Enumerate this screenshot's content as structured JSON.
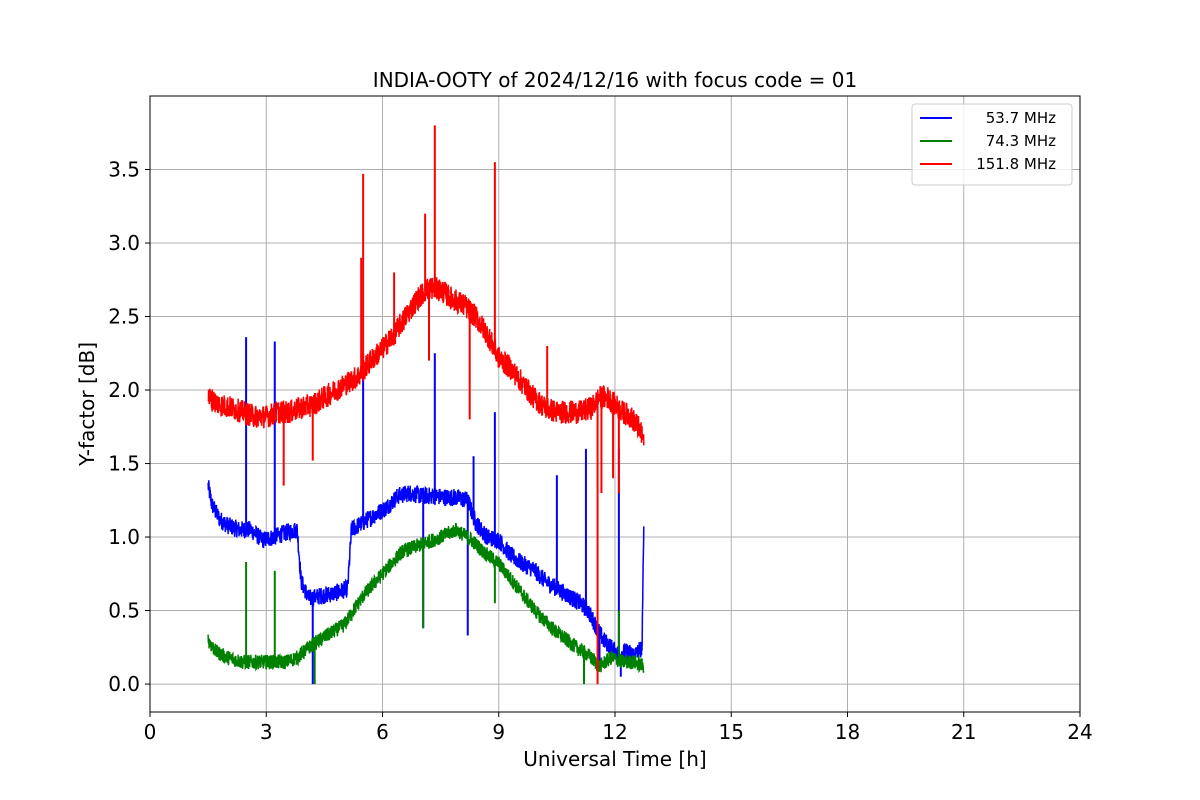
{
  "chart_data": {
    "type": "line",
    "title": "INDIA-OOTY of 2024/12/16 with focus code = 01",
    "xlabel": "Universal Time [h]",
    "ylabel": "Y-factor [dB]",
    "xlim": [
      0,
      24
    ],
    "ylim": [
      -0.19,
      4.0
    ],
    "xticks": [
      0,
      3,
      6,
      9,
      12,
      15,
      18,
      21,
      24
    ],
    "yticks": [
      0.0,
      0.5,
      1.0,
      1.5,
      2.0,
      2.5,
      3.0,
      3.5
    ],
    "ytick_labels": [
      "0.0",
      "0.5",
      "1.0",
      "1.5",
      "2.0",
      "2.5",
      "3.0",
      "3.5"
    ],
    "grid": true,
    "legend_position": "upper right",
    "series": [
      {
        "name": "53.7 MHz",
        "color": "#0000ff",
        "noise": 0.06,
        "x": [
          1.5,
          1.6,
          1.8,
          2.0,
          2.3,
          2.6,
          2.9,
          3.2,
          3.5,
          3.8,
          3.9,
          4.1,
          4.4,
          4.8,
          5.1,
          5.2,
          5.5,
          5.8,
          6.1,
          6.4,
          6.7,
          7.0,
          7.3,
          7.6,
          7.9,
          8.2,
          8.4,
          8.7,
          9.0,
          9.3,
          9.6,
          9.9,
          10.2,
          10.5,
          10.8,
          11.1,
          11.3,
          11.5,
          11.7,
          11.9,
          12.1,
          12.3,
          12.5,
          12.6,
          12.7,
          12.75
        ],
        "y": [
          1.35,
          1.22,
          1.12,
          1.08,
          1.05,
          1.05,
          0.98,
          1.0,
          1.03,
          1.05,
          0.7,
          0.58,
          0.6,
          0.62,
          0.65,
          1.05,
          1.1,
          1.15,
          1.2,
          1.28,
          1.3,
          1.28,
          1.28,
          1.27,
          1.27,
          1.25,
          1.1,
          1.0,
          0.98,
          0.88,
          0.82,
          0.78,
          0.7,
          0.65,
          0.6,
          0.55,
          0.5,
          0.4,
          0.3,
          0.25,
          0.2,
          0.22,
          0.2,
          0.22,
          0.25,
          1.25
        ],
        "spikes": [
          [
            2.48,
            2.36
          ],
          [
            3.22,
            2.33
          ],
          [
            4.2,
            0.0
          ],
          [
            5.5,
            2.25
          ],
          [
            7.05,
            0.38
          ],
          [
            7.35,
            2.25
          ],
          [
            8.2,
            0.33
          ],
          [
            8.35,
            1.55
          ],
          [
            8.9,
            1.85
          ],
          [
            10.5,
            1.42
          ],
          [
            11.25,
            1.6
          ],
          [
            11.6,
            0.1
          ],
          [
            12.1,
            1.6
          ],
          [
            12.15,
            0.05
          ]
        ]
      },
      {
        "name": "74.3 MHz",
        "color": "#008000",
        "noise": 0.05,
        "x": [
          1.5,
          1.7,
          2.0,
          2.4,
          2.8,
          3.2,
          3.5,
          3.8,
          4.1,
          4.5,
          5.0,
          5.5,
          6.0,
          6.5,
          7.0,
          7.5,
          7.9,
          8.3,
          8.6,
          9.0,
          9.5,
          10.0,
          10.5,
          11.0,
          11.3,
          11.6,
          11.9,
          12.2,
          12.5,
          12.75
        ],
        "y": [
          0.3,
          0.22,
          0.18,
          0.15,
          0.15,
          0.15,
          0.15,
          0.18,
          0.25,
          0.32,
          0.4,
          0.6,
          0.75,
          0.9,
          0.95,
          1.0,
          1.05,
          0.98,
          0.9,
          0.82,
          0.65,
          0.48,
          0.35,
          0.25,
          0.2,
          0.12,
          0.18,
          0.15,
          0.15,
          0.12
        ],
        "spikes": [
          [
            2.48,
            0.83
          ],
          [
            3.22,
            0.77
          ],
          [
            4.25,
            0.0
          ],
          [
            7.05,
            0.38
          ],
          [
            8.9,
            0.55
          ],
          [
            11.2,
            0.0
          ],
          [
            12.1,
            0.5
          ]
        ]
      },
      {
        "name": "151.8 MHz",
        "color": "#ff0000",
        "noise": 0.08,
        "x": [
          1.5,
          1.8,
          2.1,
          2.4,
          2.7,
          3.0,
          3.3,
          3.6,
          3.9,
          4.2,
          4.5,
          4.8,
          5.1,
          5.4,
          5.7,
          6.0,
          6.3,
          6.6,
          6.9,
          7.2,
          7.5,
          7.8,
          8.1,
          8.4,
          8.7,
          9.0,
          9.3,
          9.6,
          9.9,
          10.2,
          10.5,
          10.8,
          11.1,
          11.4,
          11.6,
          11.8,
          12.0,
          12.2,
          12.4,
          12.6,
          12.75
        ],
        "y": [
          1.95,
          1.9,
          1.88,
          1.85,
          1.82,
          1.82,
          1.85,
          1.85,
          1.88,
          1.9,
          1.95,
          2.0,
          2.05,
          2.1,
          2.2,
          2.28,
          2.38,
          2.5,
          2.62,
          2.7,
          2.68,
          2.62,
          2.58,
          2.5,
          2.38,
          2.22,
          2.15,
          2.05,
          1.95,
          1.88,
          1.85,
          1.85,
          1.85,
          1.88,
          1.95,
          1.95,
          1.9,
          1.85,
          1.82,
          1.75,
          1.65
        ],
        "spikes": [
          [
            3.45,
            1.35
          ],
          [
            4.2,
            1.52
          ],
          [
            5.5,
            3.47
          ],
          [
            5.45,
            2.9
          ],
          [
            6.3,
            2.8
          ],
          [
            7.35,
            3.8
          ],
          [
            7.1,
            3.2
          ],
          [
            7.2,
            2.2
          ],
          [
            8.9,
            3.55
          ],
          [
            8.25,
            1.8
          ],
          [
            10.25,
            2.3
          ],
          [
            11.55,
            0.0
          ],
          [
            11.65,
            1.3
          ],
          [
            11.95,
            1.4
          ],
          [
            12.1,
            1.3
          ]
        ]
      }
    ]
  }
}
